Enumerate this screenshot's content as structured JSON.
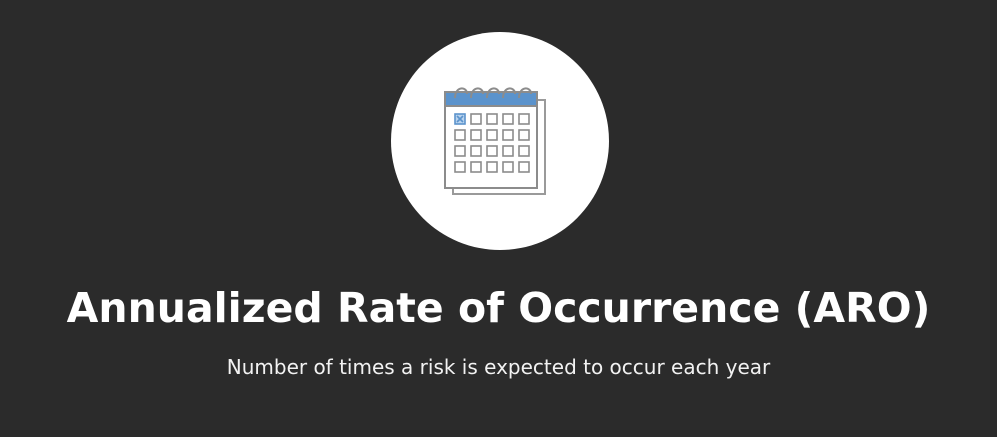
{
  "slide": {
    "title": "Annualized Rate of Occurrence (ARO)",
    "subtitle": "Number of times a risk is expected to occur each year",
    "icon": "calendar-icon",
    "colors": {
      "background": "#2b2b2b",
      "circle": "#ffffff",
      "accent": "#5b93cc",
      "line": "#8c8c8c"
    }
  }
}
